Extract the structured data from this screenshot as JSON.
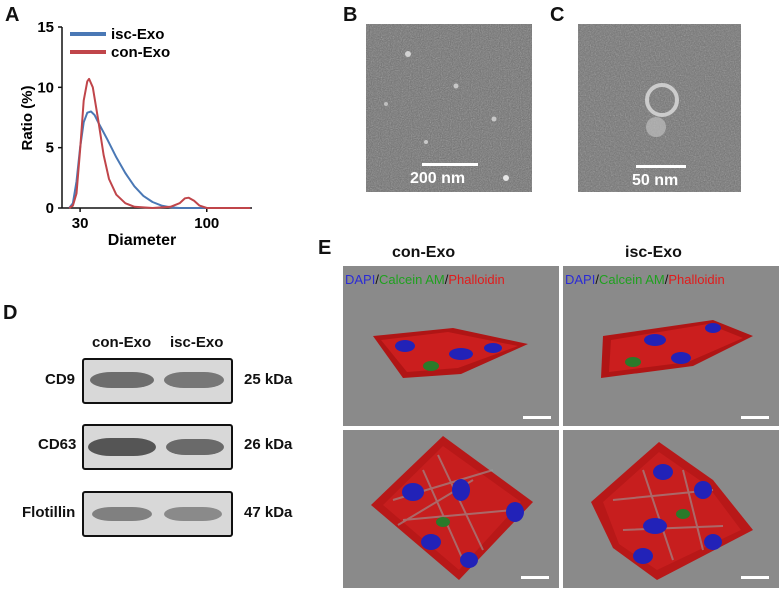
{
  "panel_labels": {
    "a": "A",
    "b": "B",
    "c": "C",
    "d": "D",
    "e": "E"
  },
  "chart_data": {
    "type": "line",
    "xlabel": "Diameter",
    "ylabel": "Ratio (%)",
    "xlim": [
      20,
      125
    ],
    "ylim": [
      0,
      15
    ],
    "xticks": [
      "30",
      "100"
    ],
    "yticks": [
      "0",
      "5",
      "10",
      "15"
    ],
    "legend": "top-left",
    "series": [
      {
        "name": "isc-Exo",
        "color": "#4a78b5",
        "x": [
          24,
          26,
          28,
          30,
          32,
          34,
          36,
          38,
          40,
          45,
          50,
          55,
          60,
          65,
          70,
          75,
          80,
          85,
          90,
          100,
          110,
          124
        ],
        "y": [
          0,
          0.4,
          2.2,
          5.0,
          7.1,
          7.9,
          8.0,
          7.7,
          7.1,
          5.7,
          4.2,
          2.9,
          1.8,
          1.0,
          0.5,
          0.2,
          0.05,
          0,
          0,
          0,
          0,
          0
        ]
      },
      {
        "name": "con-Exo",
        "color": "#c0454a",
        "x": [
          24,
          26,
          28,
          30,
          32,
          34,
          35,
          37,
          40,
          43,
          46,
          50,
          55,
          60,
          70,
          80,
          85,
          88,
          90,
          93,
          96,
          100,
          110,
          124
        ],
        "y": [
          0,
          0.2,
          1.2,
          4.8,
          8.9,
          10.5,
          10.7,
          10.0,
          7.3,
          4.4,
          2.4,
          1.1,
          0.4,
          0.1,
          0,
          0.1,
          0.4,
          0.8,
          0.85,
          0.6,
          0.2,
          0,
          0,
          0
        ]
      }
    ]
  },
  "tem": {
    "b_scale": "200 nm",
    "c_scale": "50 nm"
  },
  "western": {
    "columns": [
      "con-Exo",
      "isc-Exo"
    ],
    "rows": [
      {
        "label": "CD9",
        "size": "25 kDa"
      },
      {
        "label": "CD63",
        "size": "26 kDa"
      },
      {
        "label": "Flotillin",
        "size": "47 kDa"
      }
    ]
  },
  "confocal": {
    "columns": [
      "con-Exo",
      "isc-Exo"
    ],
    "stain_dapi": "DAPI",
    "stain_calcein": "Calcein AM",
    "stain_phalloidin": "Phalloidin",
    "separator": "/",
    "colors": {
      "dapi": "#2b2bd6",
      "calcein": "#1fa11f",
      "phalloidin": "#e11b1b",
      "background": "#777777"
    }
  }
}
